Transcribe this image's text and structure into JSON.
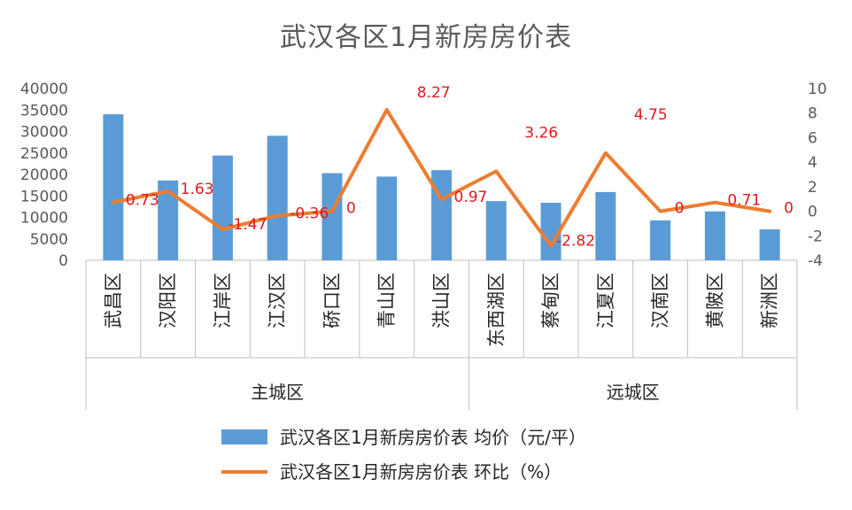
{
  "chart_data": {
    "type": "bar+line",
    "title": "武汉各区1月新房房价表",
    "categories": [
      "武昌区",
      "汉阳区",
      "江岸区",
      "江汉区",
      "硚口区",
      "青山区",
      "洪山区",
      "东西湖区",
      "蔡甸区",
      "江夏区",
      "汉南区",
      "黄陂区",
      "新洲区"
    ],
    "groups": [
      {
        "label": "主城区",
        "count": 7
      },
      {
        "label": "远城区",
        "count": 6
      }
    ],
    "series": [
      {
        "name": "武汉各区1月新房房价表 均价（元/平）",
        "type": "bar",
        "axis": "left",
        "color": "#5b9bd5",
        "values": [
          34000,
          18600,
          24400,
          29000,
          20300,
          19500,
          21000,
          13800,
          13400,
          15900,
          9300,
          11400,
          7200
        ]
      },
      {
        "name": "武汉各区1月新房房价表 环比（%）",
        "type": "line",
        "axis": "right",
        "color": "#ed7d31",
        "values": [
          0.73,
          1.63,
          -1.47,
          -0.36,
          0,
          8.27,
          0.97,
          3.26,
          -2.82,
          4.75,
          0,
          0.71,
          0
        ],
        "data_labels": [
          "0.73",
          "1.63",
          "-1.47",
          "-0.36",
          "0",
          "8.27",
          "0.97",
          "3.26",
          "-2.82",
          "4.75",
          "0",
          "0.71",
          "0"
        ]
      }
    ],
    "y_left": {
      "min": 0,
      "max": 40000,
      "ticks": [
        "0",
        "5000",
        "10000",
        "15000",
        "20000",
        "25000",
        "30000",
        "35000",
        "40000"
      ]
    },
    "y_right": {
      "min": -4,
      "max": 10,
      "ticks": [
        "-4",
        "-2",
        "0",
        "2",
        "4",
        "6",
        "8",
        "10"
      ]
    }
  }
}
